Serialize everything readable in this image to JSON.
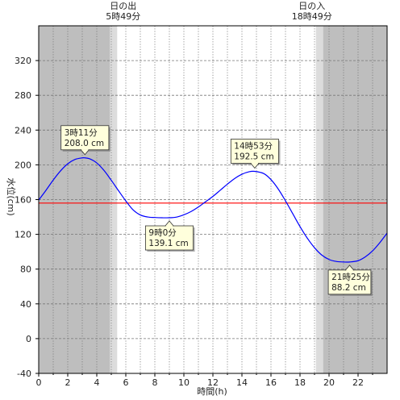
{
  "chart_data": {
    "type": "line",
    "xlabel": "時間(h)",
    "ylabel": "水位(cm)",
    "xlim": [
      0,
      24
    ],
    "ylim": [
      -40,
      360
    ],
    "x_ticks": [
      0,
      2,
      4,
      6,
      8,
      10,
      12,
      14,
      16,
      18,
      20,
      22
    ],
    "y_ticks": [
      -40,
      0,
      40,
      80,
      120,
      160,
      200,
      240,
      280,
      320
    ],
    "grid": true,
    "reference_line": {
      "value": 156,
      "color": "#ff0000"
    },
    "series": [
      {
        "color": "#0000ff",
        "x": [
          0,
          0.5,
          1,
          1.5,
          2,
          2.5,
          3,
          3.183,
          3.5,
          4,
          4.5,
          5,
          5.5,
          6,
          6.5,
          7,
          7.5,
          8,
          8.5,
          9,
          9.5,
          10,
          10.5,
          11,
          11.5,
          12,
          12.5,
          13,
          13.5,
          14,
          14.5,
          14.883,
          15.5,
          16,
          16.5,
          17,
          17.5,
          18,
          18.5,
          19,
          19.5,
          20,
          20.5,
          21,
          21.417,
          22,
          22.5,
          23,
          23.5,
          24
        ],
        "y": [
          159.5,
          170.7,
          182.5,
          193.0,
          201.2,
          206.2,
          208.0,
          208.0,
          207.0,
          202.2,
          193.5,
          182.2,
          170.2,
          158.5,
          148.2,
          142.3,
          140.0,
          139.4,
          139.1,
          139.1,
          139.9,
          142.5,
          146.3,
          151.5,
          157.6,
          163.7,
          170.7,
          177.8,
          184.3,
          189.2,
          192.1,
          192.5,
          190.0,
          183.0,
          172.2,
          158.6,
          143.8,
          129.0,
          115.7,
          104.6,
          96.2,
          91.1,
          88.8,
          88.2,
          88.2,
          89.7,
          94.1,
          101.0,
          110.5,
          121.5
        ]
      }
    ],
    "daylight": [
      {
        "label": "日の出",
        "time": "5時49分",
        "x": 5.817
      },
      {
        "label": "日の入",
        "time": "18時49分",
        "x": 18.817
      }
    ],
    "twilight_bands": [
      [
        4.9,
        5.4
      ],
      [
        19.1,
        19.6
      ]
    ],
    "annotations": [
      {
        "line1": "3時11分",
        "line2": "208.0 cm",
        "x": 3.183,
        "y": 208.0
      },
      {
        "line1": "14時53分",
        "line2": "192.5 cm",
        "x": 14.883,
        "y": 192.5
      },
      {
        "line1": "9時0分",
        "line2": "139.1 cm",
        "x": 9.0,
        "y": 139.1
      },
      {
        "line1": "21時25分",
        "line2": "88.2 cm",
        "x": 21.417,
        "y": 88.2
      }
    ],
    "colors": {
      "night": "#bebebe",
      "twilight": "#dcdcdc",
      "day": "#ffffff",
      "annotation_bg": "#ffffdc",
      "gridline": "#777777"
    }
  }
}
